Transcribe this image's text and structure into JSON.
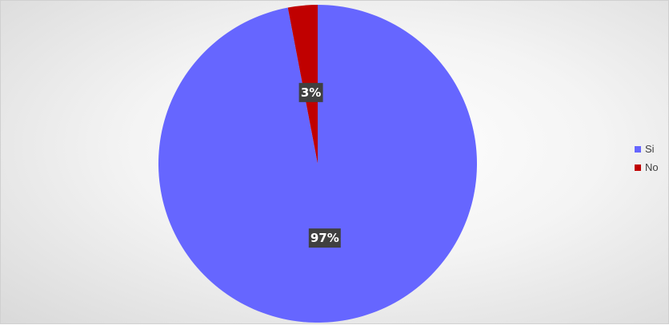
{
  "chart_data": {
    "type": "pie",
    "title": "",
    "categories": [
      "Si",
      "No"
    ],
    "values": [
      97,
      3
    ],
    "labels": [
      "97%",
      "3%"
    ],
    "colors": [
      "#6666ff",
      "#c00000"
    ],
    "legend_position": "right",
    "start_angle_deg": 0,
    "direction": "clockwise"
  }
}
